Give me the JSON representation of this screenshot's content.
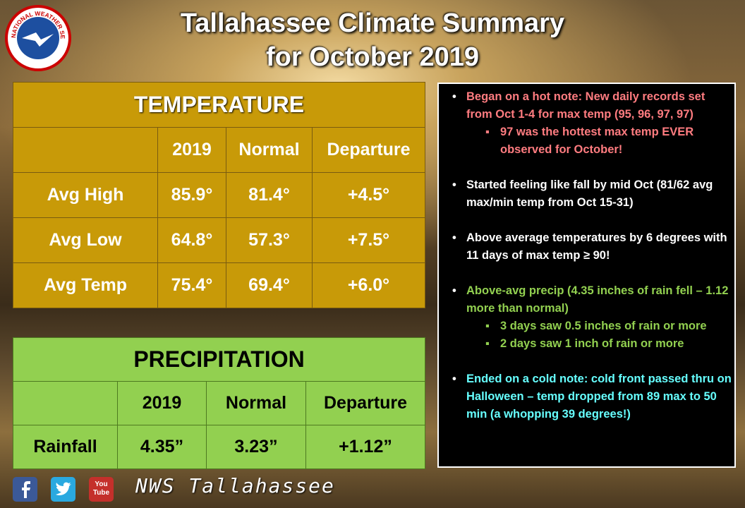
{
  "header": {
    "title": [
      "Tallahassee Climate Summary",
      "for October 2019"
    ]
  },
  "logo": {
    "text": "NATIONAL WEATHER SERVICE"
  },
  "temperature": {
    "title": "TEMPERATURE",
    "columns": [
      "2019",
      "Normal",
      "Departure"
    ],
    "rows": [
      [
        "Avg High",
        "85.9°",
        "81.4°",
        "+4.5°"
      ],
      [
        "Avg Low",
        "64.8°",
        "57.3°",
        "+7.5°"
      ],
      [
        "Avg Temp",
        "75.4°",
        "69.4°",
        "+6.0°"
      ]
    ]
  },
  "precipitation": {
    "title": "PRECIPITATION",
    "columns": [
      "2019",
      "Normal",
      "Departure"
    ],
    "rows": [
      [
        "Rainfall",
        "4.35”",
        "3.23”",
        "+1.12”"
      ]
    ]
  },
  "notes": [
    {
      "text": "Began on a hot note: New daily records set from Oct 1-4 for max temp (95, 96, 97, 97)",
      "color": "#ff7c80",
      "subnotes": [
        "97 was the hottest max temp EVER observed for October!"
      ]
    },
    {
      "text": "Started feeling like fall by mid Oct (81/62 avg max/min temp from Oct 15-31)",
      "color": "#ffffff",
      "subnotes": []
    },
    {
      "text": "Above average temperatures by 6 degrees with 11 days of max temp ≥ 90!",
      "color": "#ffffff",
      "subnotes": []
    },
    {
      "text": "Above-avg precip (4.35 inches of rain fell – 1.12 more than normal)",
      "color": "#92d050",
      "subnotes": [
        "3 days saw 0.5 inches of rain or more",
        "2 days saw 1 inch of rain or more"
      ]
    },
    {
      "text": "Ended on a cold note: cold front passed thru on Halloween – temp dropped from 89 max to 50 min (a whopping 39 degrees!)",
      "color": "#66ffff",
      "subnotes": []
    }
  ],
  "footer": {
    "signature": "NWS Tallahassee",
    "youtube": [
      "You",
      "Tube"
    ]
  }
}
